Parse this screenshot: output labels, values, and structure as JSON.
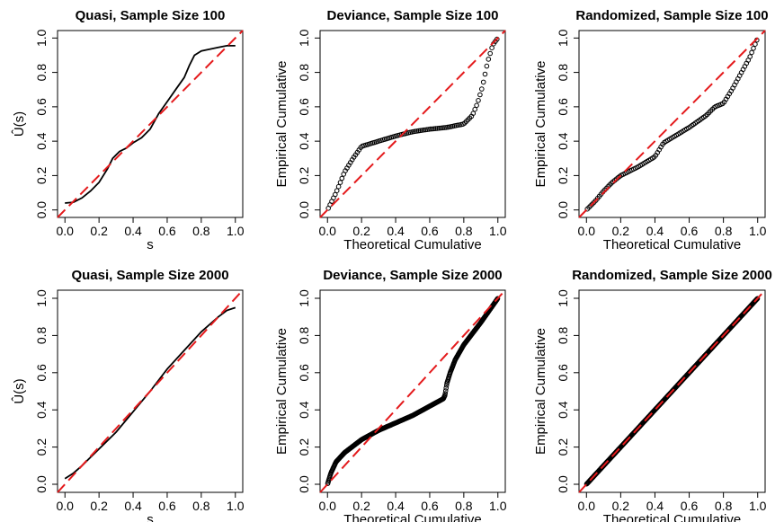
{
  "figure": {
    "reference_line": {
      "from": [
        0,
        0
      ],
      "to": [
        1,
        1
      ],
      "color": "#e41a1c",
      "style": "dashed"
    },
    "curve_color": "#000000"
  },
  "chart_data": [
    {
      "type": "line",
      "title": "Quasi, Sample Size 100",
      "xlabel": "s",
      "ylabel": "Û(s)",
      "xlim": [
        0,
        1
      ],
      "ylim": [
        0,
        1
      ],
      "xticks": [
        "0.0",
        "0.2",
        "0.4",
        "0.6",
        "0.8",
        "1.0"
      ],
      "yticks": [
        "0.0",
        "0.2",
        "0.4",
        "0.6",
        "0.8",
        "1.0"
      ],
      "x": [
        0.0,
        0.05,
        0.1,
        0.15,
        0.2,
        0.25,
        0.28,
        0.32,
        0.36,
        0.4,
        0.45,
        0.5,
        0.55,
        0.6,
        0.65,
        0.7,
        0.73,
        0.76,
        0.8,
        0.85,
        0.9,
        0.95,
        1.0
      ],
      "y": [
        0.04,
        0.045,
        0.07,
        0.11,
        0.16,
        0.24,
        0.3,
        0.34,
        0.36,
        0.39,
        0.42,
        0.47,
        0.56,
        0.63,
        0.7,
        0.77,
        0.84,
        0.9,
        0.925,
        0.935,
        0.945,
        0.955,
        0.955
      ]
    },
    {
      "type": "scatter",
      "title": "Deviance, Sample Size 100",
      "xlabel": "Theoretical Cumulative",
      "ylabel": "Empirical Cumulative",
      "xlim": [
        0,
        1
      ],
      "ylim": [
        0,
        1
      ],
      "xticks": [
        "0.0",
        "0.2",
        "0.4",
        "0.6",
        "0.8",
        "1.0"
      ],
      "yticks": [
        "0.0",
        "0.2",
        "0.4",
        "0.6",
        "0.8",
        "1.0"
      ],
      "x": [
        0.0,
        0.05,
        0.1,
        0.15,
        0.2,
        0.3,
        0.4,
        0.5,
        0.6,
        0.7,
        0.8,
        0.85,
        0.88,
        0.91,
        0.94,
        0.97,
        1.0
      ],
      "y": [
        0.0,
        0.1,
        0.22,
        0.3,
        0.37,
        0.4,
        0.43,
        0.455,
        0.47,
        0.48,
        0.5,
        0.55,
        0.62,
        0.72,
        0.86,
        0.96,
        1.0
      ],
      "n_points": 100
    },
    {
      "type": "scatter",
      "title": "Randomized, Sample Size 100",
      "xlabel": "Theoretical Cumulative",
      "ylabel": "Empirical Cumulative",
      "xlim": [
        0,
        1
      ],
      "ylim": [
        0,
        1
      ],
      "xticks": [
        "0.0",
        "0.2",
        "0.4",
        "0.6",
        "0.8",
        "1.0"
      ],
      "yticks": [
        "0.0",
        "0.2",
        "0.4",
        "0.6",
        "0.8",
        "1.0"
      ],
      "x": [
        0.0,
        0.05,
        0.1,
        0.15,
        0.2,
        0.3,
        0.4,
        0.45,
        0.5,
        0.6,
        0.7,
        0.75,
        0.8,
        0.85,
        0.9,
        0.95,
        1.0
      ],
      "y": [
        0.0,
        0.05,
        0.11,
        0.16,
        0.2,
        0.25,
        0.31,
        0.39,
        0.42,
        0.48,
        0.55,
        0.6,
        0.62,
        0.7,
        0.79,
        0.88,
        1.0
      ],
      "n_points": 100
    },
    {
      "type": "line",
      "title": "Quasi, Sample Size 2000",
      "xlabel": "s",
      "ylabel": "Û(s)",
      "xlim": [
        0,
        1
      ],
      "ylim": [
        0,
        1
      ],
      "xticks": [
        "0.0",
        "0.2",
        "0.4",
        "0.6",
        "0.8",
        "1.0"
      ],
      "yticks": [
        "0.0",
        "0.2",
        "0.4",
        "0.6",
        "0.8",
        "1.0"
      ],
      "x": [
        0.0,
        0.05,
        0.1,
        0.2,
        0.3,
        0.4,
        0.5,
        0.6,
        0.7,
        0.8,
        0.9,
        0.95,
        1.0
      ],
      "y": [
        0.03,
        0.06,
        0.1,
        0.19,
        0.28,
        0.39,
        0.5,
        0.62,
        0.72,
        0.82,
        0.9,
        0.935,
        0.95
      ]
    },
    {
      "type": "scatter",
      "title": "Deviance, Sample Size 2000",
      "xlabel": "Theoretical Cumulative",
      "ylabel": "Empirical Cumulative",
      "xlim": [
        0,
        1
      ],
      "ylim": [
        0,
        1
      ],
      "xticks": [
        "0.0",
        "0.2",
        "0.4",
        "0.6",
        "0.8",
        "1.0"
      ],
      "yticks": [
        "0.0",
        "0.2",
        "0.4",
        "0.6",
        "0.8",
        "1.0"
      ],
      "x": [
        0.0,
        0.02,
        0.05,
        0.1,
        0.2,
        0.3,
        0.4,
        0.5,
        0.6,
        0.68,
        0.69,
        0.7,
        0.72,
        0.75,
        0.8,
        0.9,
        1.0
      ],
      "y": [
        0.0,
        0.06,
        0.12,
        0.17,
        0.24,
        0.29,
        0.33,
        0.37,
        0.42,
        0.46,
        0.48,
        0.54,
        0.6,
        0.67,
        0.75,
        0.87,
        1.0
      ],
      "n_points": 400
    },
    {
      "type": "scatter",
      "title": "Randomized, Sample Size 2000",
      "xlabel": "Theoretical Cumulative",
      "ylabel": "Empirical Cumulative",
      "xlim": [
        0,
        1
      ],
      "ylim": [
        0,
        1
      ],
      "xticks": [
        "0.0",
        "0.2",
        "0.4",
        "0.6",
        "0.8",
        "1.0"
      ],
      "yticks": [
        "0.0",
        "0.2",
        "0.4",
        "0.6",
        "0.8",
        "1.0"
      ],
      "x": [
        0.0,
        0.25,
        0.5,
        0.75,
        1.0
      ],
      "y": [
        0.0,
        0.25,
        0.5,
        0.75,
        1.0
      ],
      "n_points": 400
    }
  ]
}
